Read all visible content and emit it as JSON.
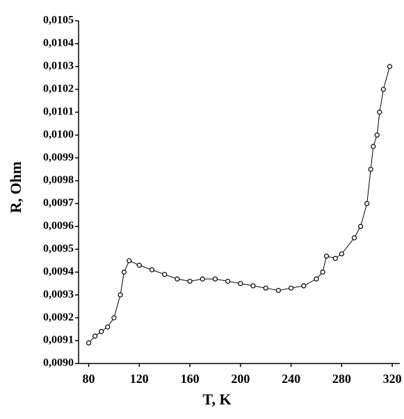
{
  "chart_data": {
    "type": "line",
    "markers": true,
    "color": "#000000",
    "xlabel": "T, K",
    "ylabel": "R, Ohm",
    "x": [
      80,
      85,
      90,
      95,
      100,
      105,
      108,
      112,
      120,
      130,
      140,
      150,
      160,
      170,
      180,
      190,
      200,
      210,
      220,
      230,
      240,
      250,
      260,
      265,
      268,
      275,
      280,
      290,
      295,
      300,
      303,
      305,
      308,
      310,
      313,
      318
    ],
    "values": [
      0.00909,
      0.00912,
      0.00914,
      0.00916,
      0.0092,
      0.0093,
      0.0094,
      0.00945,
      0.00943,
      0.00941,
      0.00939,
      0.00937,
      0.00936,
      0.00937,
      0.00937,
      0.00936,
      0.00935,
      0.00934,
      0.00933,
      0.00932,
      0.00933,
      0.00934,
      0.00937,
      0.0094,
      0.00947,
      0.00946,
      0.00948,
      0.00955,
      0.0096,
      0.0097,
      0.00985,
      0.00995,
      0.01,
      0.0101,
      0.0102,
      0.0103
    ],
    "xlim": [
      72,
      326
    ],
    "xticks": [
      80,
      120,
      160,
      200,
      240,
      280,
      320
    ],
    "ylim": [
      0.009,
      0.0105
    ],
    "yticks": [
      {
        "value": 0.009,
        "label": "0,0090"
      },
      {
        "value": 0.0091,
        "label": "0,0091"
      },
      {
        "value": 0.0092,
        "label": "0,0092"
      },
      {
        "value": 0.0093,
        "label": "0,0093"
      },
      {
        "value": 0.0094,
        "label": "0,0094"
      },
      {
        "value": 0.0095,
        "label": "0,0095"
      },
      {
        "value": 0.0096,
        "label": "0,0096"
      },
      {
        "value": 0.0097,
        "label": "0,0097"
      },
      {
        "value": 0.0098,
        "label": "0,0098"
      },
      {
        "value": 0.0099,
        "label": "0,0099"
      },
      {
        "value": 0.01,
        "label": "0,0100"
      },
      {
        "value": 0.0101,
        "label": "0,0101"
      },
      {
        "value": 0.0102,
        "label": "0,0102"
      },
      {
        "value": 0.0103,
        "label": "0,0103"
      },
      {
        "value": 0.0104,
        "label": "0,0104"
      },
      {
        "value": 0.0105,
        "label": "0,0105"
      }
    ],
    "grid": false
  }
}
